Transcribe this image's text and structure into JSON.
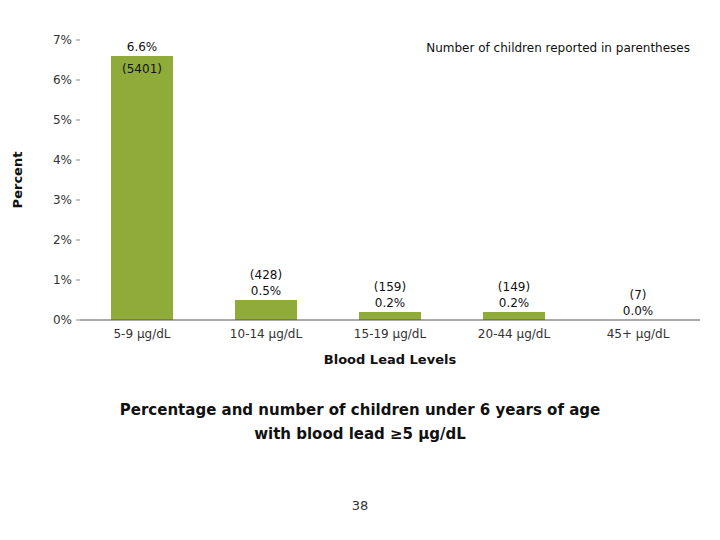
{
  "chart_data": {
    "type": "bar",
    "categories": [
      "5-9 μg/dL",
      "10-14 μg/dL",
      "15-19 μg/dL",
      "20-44 μg/dL",
      "45+ μg/dL"
    ],
    "values": [
      6.6,
      0.5,
      0.2,
      0.2,
      0.0
    ],
    "value_labels": [
      "6.6%",
      "0.5%",
      "0.2%",
      "0.2%",
      "0.0%"
    ],
    "counts": [
      5401,
      428,
      159,
      149,
      7
    ],
    "count_labels": [
      "(5401)",
      "(428)",
      "(159)",
      "(149)",
      "(7)"
    ],
    "color": "#8fac3a",
    "x_label": "Blood Lead Levels",
    "y_label": "Percent",
    "subtitle": [
      "Percentage and number of children under 6 years of age",
      "with blood lead ≥5 μg/dL"
    ],
    "annotations": [
      "Number of children reported in parentheses",
      "38"
    ],
    "ylim": [
      0,
      7
    ],
    "yticks": [
      {
        "value": 0,
        "label": "0%"
      },
      {
        "value": 1,
        "label": "1%"
      },
      {
        "value": 2,
        "label": "2%"
      },
      {
        "value": 3,
        "label": "3%"
      },
      {
        "value": 4,
        "label": "4%"
      },
      {
        "value": 5,
        "label": "5%"
      },
      {
        "value": 6,
        "label": "6%"
      },
      {
        "value": 7,
        "label": "7%"
      }
    ],
    "grid": false,
    "data_labels": true
  }
}
